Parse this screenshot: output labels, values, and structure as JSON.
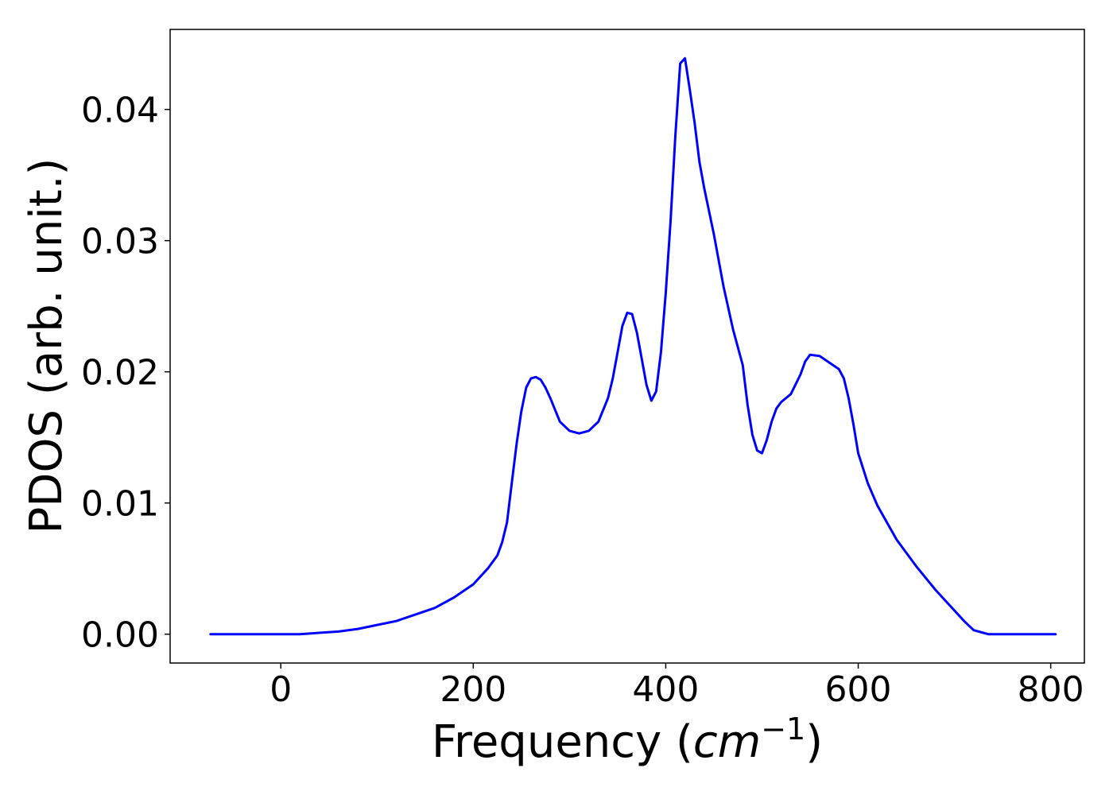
{
  "chart_data": {
    "type": "line",
    "title": "",
    "xlabel_main": "Frequency (",
    "xlabel_unit": "cm",
    "xlabel_exp": "−1",
    "xlabel_close": ")",
    "ylabel": "PDOS (arb. unit.)",
    "xlim": [
      -115,
      835
    ],
    "ylim": [
      -0.0022,
      0.0461
    ],
    "xticks": [
      0,
      200,
      400,
      600,
      800
    ],
    "xtick_labels": [
      "0",
      "200",
      "400",
      "600",
      "800"
    ],
    "yticks": [
      0.0,
      0.01,
      0.02,
      0.03,
      0.04
    ],
    "ytick_labels": [
      "0.00",
      "0.01",
      "0.02",
      "0.03",
      "0.04"
    ],
    "grid": false,
    "series": [
      {
        "color": "#0000ff",
        "x": [
          -73,
          0,
          20,
          40,
          60,
          80,
          100,
          120,
          140,
          160,
          180,
          200,
          215,
          225,
          230,
          235,
          240,
          245,
          250,
          255,
          260,
          265,
          270,
          275,
          280,
          290,
          300,
          310,
          320,
          330,
          340,
          345,
          350,
          355,
          360,
          365,
          370,
          375,
          380,
          385,
          390,
          395,
          400,
          405,
          410,
          415,
          420,
          425,
          430,
          435,
          440,
          450,
          460,
          470,
          480,
          485,
          490,
          495,
          500,
          505,
          510,
          515,
          520,
          530,
          540,
          545,
          550,
          560,
          570,
          580,
          585,
          590,
          595,
          600,
          610,
          620,
          640,
          660,
          680,
          700,
          710,
          720,
          730,
          735,
          740,
          745,
          750,
          760,
          780,
          805
        ],
        "y": [
          0.0,
          0.0,
          0.0,
          0.0001,
          0.0002,
          0.0004,
          0.0007,
          0.001,
          0.0015,
          0.002,
          0.0028,
          0.0038,
          0.005,
          0.006,
          0.007,
          0.0085,
          0.0115,
          0.0145,
          0.017,
          0.0188,
          0.0195,
          0.0196,
          0.0194,
          0.0188,
          0.018,
          0.0162,
          0.0155,
          0.0153,
          0.0155,
          0.0162,
          0.018,
          0.0195,
          0.0215,
          0.0235,
          0.0245,
          0.0244,
          0.023,
          0.021,
          0.019,
          0.0178,
          0.0185,
          0.0215,
          0.026,
          0.0315,
          0.038,
          0.0435,
          0.0439,
          0.0415,
          0.039,
          0.036,
          0.034,
          0.0305,
          0.0265,
          0.0232,
          0.0205,
          0.0175,
          0.0152,
          0.014,
          0.0138,
          0.0148,
          0.0162,
          0.0172,
          0.0177,
          0.0183,
          0.0198,
          0.0208,
          0.0213,
          0.0212,
          0.0207,
          0.0202,
          0.0195,
          0.018,
          0.016,
          0.0138,
          0.0115,
          0.0098,
          0.0072,
          0.0052,
          0.0034,
          0.0018,
          0.001,
          0.0003,
          0.0001,
          0.0,
          0.0,
          0.0,
          0.0,
          0.0,
          0.0,
          0.0
        ]
      }
    ]
  }
}
